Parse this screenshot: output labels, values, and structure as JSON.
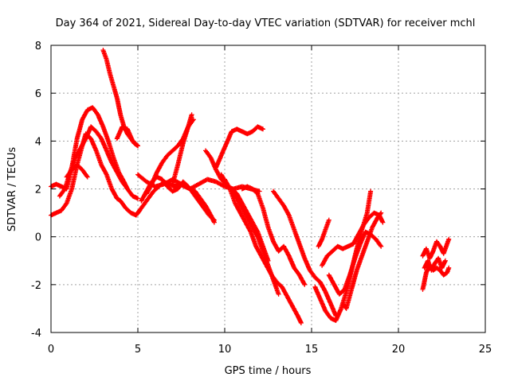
{
  "chart_data": {
    "type": "scatter",
    "title": "Day 364 of 2021, Sidereal Day-to-day VTEC variation (SDTVAR) for receiver mchl",
    "xlabel": "GPS time / hours",
    "ylabel": "SDTVAR / TECUs",
    "xlim": [
      0,
      25
    ],
    "ylim": [
      -4,
      8
    ],
    "xticks": [
      0,
      5,
      10,
      15,
      20,
      25
    ],
    "yticks": [
      -4,
      -2,
      0,
      2,
      4,
      6,
      8
    ],
    "xtick_labels": [
      "0",
      "5",
      "10",
      "15",
      "20",
      "25"
    ],
    "ytick_labels": [
      "-4",
      "-2",
      "0",
      "2",
      "4",
      "6",
      "8"
    ],
    "grid": true,
    "marker": "+",
    "marker_color": "#ff0000",
    "series": [
      {
        "x": [
          0.0,
          0.3,
          0.6,
          0.9,
          1.2,
          1.5,
          1.8,
          2.0,
          2.3,
          2.6,
          2.9,
          3.2,
          3.5,
          3.8,
          4.0,
          4.3,
          4.6,
          4.9,
          5.1
        ],
        "y": [
          0.9,
          1.0,
          1.1,
          1.4,
          2.0,
          3.0,
          3.8,
          4.3,
          4.1,
          3.6,
          3.0,
          2.6,
          2.0,
          1.6,
          1.5,
          1.2,
          1.0,
          0.9,
          1.1
        ]
      },
      {
        "x": [
          0.0,
          0.3,
          0.6,
          0.9,
          1.2,
          1.5,
          1.8,
          2.1,
          2.4,
          2.7,
          3.0,
          3.3,
          3.6,
          3.9,
          4.2,
          4.4
        ],
        "y": [
          2.1,
          2.2,
          2.1,
          2.0,
          2.9,
          4.1,
          4.9,
          5.3,
          5.4,
          5.1,
          4.6,
          4.0,
          3.3,
          2.7,
          2.3,
          2.0
        ]
      },
      {
        "x": [
          0.5,
          0.8,
          1.1,
          1.4,
          1.7,
          2.0,
          2.3,
          2.6,
          2.9,
          3.2,
          3.5,
          3.8,
          4.1,
          4.4,
          4.7,
          5.0
        ],
        "y": [
          1.7,
          2.0,
          2.7,
          3.3,
          3.7,
          4.1,
          4.6,
          4.4,
          4.1,
          3.6,
          3.1,
          2.7,
          2.3,
          2.0,
          1.7,
          1.6
        ]
      },
      {
        "x": [
          0.9,
          1.2,
          1.5,
          1.8,
          2.1
        ],
        "y": [
          2.5,
          2.8,
          3.0,
          2.8,
          2.5
        ]
      },
      {
        "x": [
          3.0,
          3.2,
          3.4,
          3.6,
          3.8,
          4.0,
          4.2,
          4.4,
          4.6,
          4.8,
          5.0
        ],
        "y": [
          7.8,
          7.4,
          6.8,
          6.3,
          5.8,
          5.1,
          4.6,
          4.3,
          4.1,
          3.9,
          3.8
        ]
      },
      {
        "x": [
          3.8,
          4.1,
          4.4,
          4.7,
          5.0
        ],
        "y": [
          4.1,
          4.6,
          4.5,
          4.0,
          3.8
        ]
      },
      {
        "x": [
          5.0,
          5.3,
          5.6,
          5.9,
          6.2,
          6.5,
          6.8,
          7.1,
          7.4,
          7.7,
          8.0,
          8.3,
          8.6,
          8.9,
          9.2,
          9.4
        ],
        "y": [
          1.0,
          1.3,
          1.6,
          1.9,
          2.1,
          2.3,
          2.2,
          2.1,
          2.2,
          2.1,
          2.0,
          1.9,
          1.6,
          1.3,
          0.9,
          0.6
        ]
      },
      {
        "x": [
          5.2,
          5.5,
          5.8,
          6.1,
          6.4,
          6.7,
          7.0,
          7.3,
          7.6,
          7.9,
          8.2,
          8.5,
          8.8,
          9.1,
          9.4
        ],
        "y": [
          1.5,
          1.9,
          2.3,
          2.5,
          2.4,
          2.1,
          1.9,
          2.0,
          2.3,
          2.1,
          1.8,
          1.5,
          1.2,
          0.9,
          0.7
        ]
      },
      {
        "x": [
          5.5,
          5.8,
          6.1,
          6.4,
          6.7,
          7.0,
          7.3,
          7.6,
          7.9,
          8.2
        ],
        "y": [
          1.8,
          2.2,
          2.7,
          3.1,
          3.4,
          3.6,
          3.8,
          4.1,
          4.6,
          4.9
        ]
      },
      {
        "x": [
          5.0,
          5.5,
          6.0,
          6.5,
          7.0,
          7.5,
          8.0,
          8.5,
          9.0,
          9.5,
          10.0,
          10.5,
          11.0,
          11.5,
          12.0
        ],
        "y": [
          2.6,
          2.3,
          2.1,
          2.2,
          2.4,
          2.2,
          2.0,
          2.2,
          2.4,
          2.3,
          2.1,
          2.0,
          2.1,
          2.0,
          1.9
        ]
      },
      {
        "x": [
          7.0,
          7.3,
          7.6,
          7.9,
          8.1
        ],
        "y": [
          2.2,
          3.0,
          3.9,
          4.6,
          5.1
        ]
      },
      {
        "x": [
          8.9,
          9.2,
          9.5,
          9.8,
          10.1,
          10.4,
          10.7,
          11.0,
          11.3,
          11.6,
          11.9,
          12.2,
          12.5,
          12.8,
          13.1
        ],
        "y": [
          3.6,
          3.3,
          2.8,
          2.4,
          2.2,
          2.0,
          1.6,
          1.2,
          0.8,
          0.4,
          0.0,
          -0.6,
          -1.2,
          -1.8,
          -2.4
        ]
      },
      {
        "x": [
          9.5,
          9.8,
          10.1,
          10.4,
          10.7,
          11.0,
          11.3,
          11.6,
          11.9,
          12.2
        ],
        "y": [
          2.9,
          3.4,
          3.9,
          4.4,
          4.5,
          4.4,
          4.3,
          4.4,
          4.6,
          4.5
        ]
      },
      {
        "x": [
          9.8,
          10.1,
          10.4,
          10.7,
          11.0,
          11.3,
          11.6,
          11.9,
          12.2,
          12.5
        ],
        "y": [
          2.6,
          2.2,
          2.0,
          1.8,
          1.4,
          1.0,
          0.6,
          0.2,
          -0.4,
          -1.0
        ]
      },
      {
        "x": [
          10.0,
          10.3,
          10.6,
          10.9,
          11.2,
          11.5,
          11.8,
          12.1,
          12.4,
          12.7,
          13.0,
          13.3,
          13.6,
          13.9,
          14.2,
          14.4
        ],
        "y": [
          2.4,
          2.0,
          1.4,
          1.0,
          0.6,
          0.2,
          -0.4,
          -0.8,
          -1.2,
          -1.6,
          -1.9,
          -2.1,
          -2.5,
          -2.9,
          -3.3,
          -3.6
        ]
      },
      {
        "x": [
          11.0,
          11.3,
          11.6,
          11.9,
          12.2,
          12.5,
          12.8,
          13.1,
          13.4,
          13.7,
          14.0,
          14.3,
          14.6
        ],
        "y": [
          2.0,
          2.1,
          2.0,
          1.8,
          1.2,
          0.4,
          -0.2,
          -0.6,
          -0.4,
          -0.8,
          -1.3,
          -1.6,
          -2.0
        ]
      },
      {
        "x": [
          12.8,
          13.1,
          13.4,
          13.7,
          14.0,
          14.3,
          14.6,
          14.9,
          15.2,
          15.5,
          15.8,
          16.1,
          16.4
        ],
        "y": [
          1.9,
          1.6,
          1.3,
          0.9,
          0.3,
          -0.3,
          -0.9,
          -1.4,
          -1.7,
          -1.9,
          -2.3,
          -2.8,
          -3.3
        ]
      },
      {
        "x": [
          15.2,
          15.5,
          15.8,
          16.1,
          16.4,
          16.7,
          17.0,
          17.3,
          17.6,
          17.9,
          18.2,
          18.4
        ],
        "y": [
          -2.1,
          -2.6,
          -3.1,
          -3.4,
          -3.5,
          -3.0,
          -2.3,
          -1.4,
          -0.5,
          0.3,
          1.0,
          1.9
        ]
      },
      {
        "x": [
          15.6,
          15.9,
          16.2,
          16.5,
          16.8,
          17.1,
          17.4,
          17.7,
          18.0,
          18.3,
          18.6,
          18.9,
          19.1
        ],
        "y": [
          -1.2,
          -0.8,
          -0.6,
          -0.4,
          -0.5,
          -0.4,
          -0.3,
          0.1,
          0.5,
          0.8,
          1.0,
          0.9,
          0.6
        ]
      },
      {
        "x": [
          16.0,
          16.3,
          16.6,
          16.9,
          17.2,
          17.5,
          17.8,
          18.1,
          18.4,
          18.7,
          19.0
        ],
        "y": [
          -1.6,
          -2.0,
          -2.4,
          -2.2,
          -1.6,
          -0.9,
          -0.3,
          0.2,
          0.1,
          -0.1,
          -0.4
        ]
      },
      {
        "x": [
          15.4,
          15.6,
          15.8,
          16.0
        ],
        "y": [
          -0.4,
          -0.1,
          0.3,
          0.7
        ]
      },
      {
        "x": [
          16.8,
          17.0,
          17.3,
          17.6,
          17.9,
          18.2,
          18.5,
          18.8,
          19.0
        ],
        "y": [
          -2.8,
          -3.0,
          -2.2,
          -1.4,
          -0.8,
          -0.2,
          0.4,
          0.8,
          1.0
        ]
      },
      {
        "x": [
          21.4,
          21.6,
          21.8,
          22.0,
          22.2,
          22.4,
          22.6,
          22.8,
          22.9
        ],
        "y": [
          -2.2,
          -1.5,
          -1.2,
          -1.4,
          -1.3,
          -1.4,
          -1.6,
          -1.5,
          -1.3
        ]
      },
      {
        "x": [
          21.4,
          21.6,
          21.8,
          22.0,
          22.2,
          22.4,
          22.6,
          22.8,
          22.9
        ],
        "y": [
          -0.8,
          -0.5,
          -0.9,
          -0.6,
          -0.2,
          -0.4,
          -0.7,
          -0.3,
          -0.1
        ]
      },
      {
        "x": [
          21.5,
          21.7,
          21.9,
          22.1,
          22.3,
          22.5,
          22.7
        ],
        "y": [
          -1.3,
          -1.0,
          -1.4,
          -1.1,
          -0.9,
          -1.3,
          -1.0
        ]
      }
    ]
  }
}
